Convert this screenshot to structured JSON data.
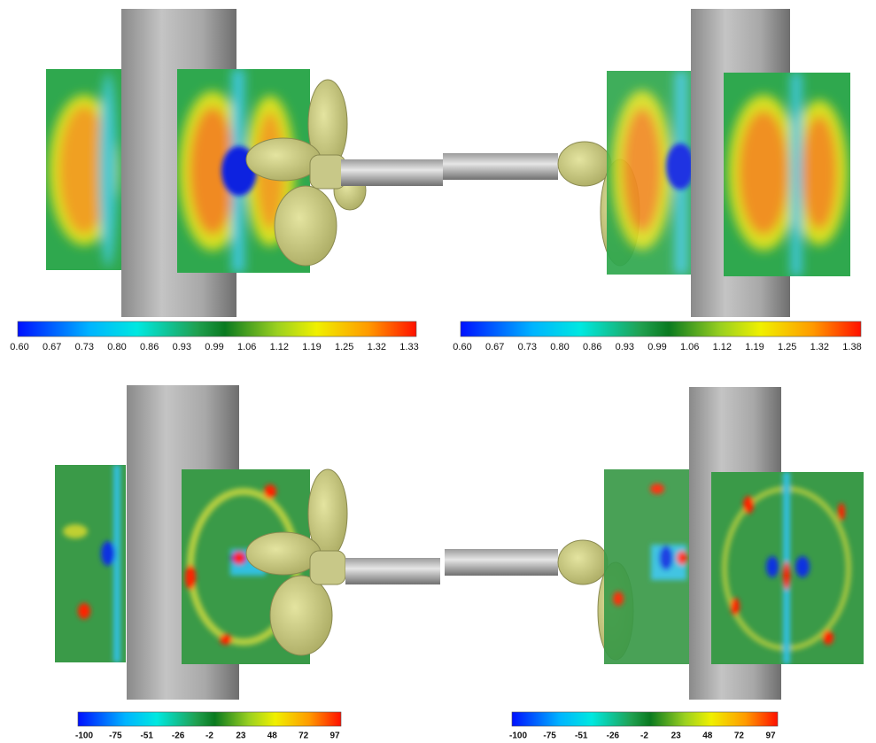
{
  "colorbars": [
    {
      "ticks": [
        "0.60",
        "0.67",
        "0.73",
        "0.80",
        "0.86",
        "0.93",
        "0.99",
        "1.06",
        "1.12",
        "1.19",
        "1.25",
        "1.32",
        "1.33"
      ]
    },
    {
      "ticks": [
        "0.60",
        "0.67",
        "0.73",
        "0.80",
        "0.86",
        "0.93",
        "0.99",
        "1.06",
        "1.12",
        "1.19",
        "1.25",
        "1.32",
        "1.38"
      ]
    },
    {
      "ticks": [
        "-100",
        "-75",
        "-51",
        "-26",
        "-2",
        "23",
        "48",
        "72",
        "97"
      ]
    },
    {
      "ticks": [
        "-100",
        "-75",
        "-51",
        "-26",
        "-2",
        "23",
        "48",
        "72",
        "97"
      ]
    }
  ]
}
